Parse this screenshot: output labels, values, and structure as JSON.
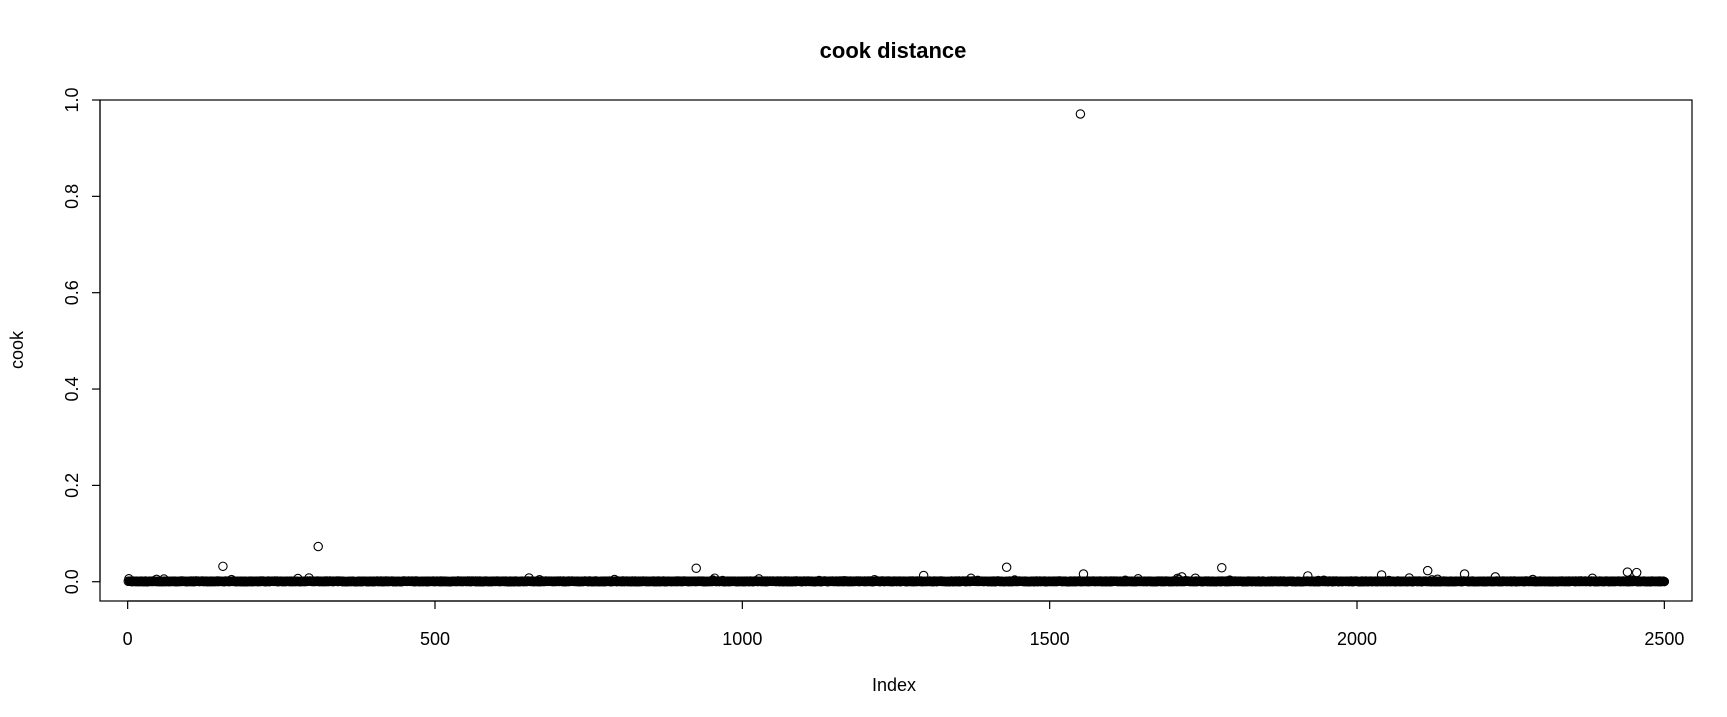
{
  "chart_data": {
    "type": "scatter",
    "title": "cook distance",
    "xlabel": "Index",
    "ylabel": "cook",
    "xlim": [
      -45,
      2545
    ],
    "ylim": [
      -0.04,
      1.0
    ],
    "x_ticks": [
      0,
      500,
      1000,
      1500,
      2000,
      2500
    ],
    "x_tick_labels": [
      "0",
      "500",
      "1000",
      "1500",
      "2000",
      "2500"
    ],
    "y_ticks": [
      0.0,
      0.2,
      0.4,
      0.6,
      0.8,
      1.0
    ],
    "y_tick_labels": [
      "0.0",
      "0.2",
      "0.4",
      "0.6",
      "0.8",
      "1.0"
    ],
    "grid": false,
    "legend": "none",
    "marker": "open-circle",
    "n_points": 2500,
    "baseline": {
      "description": "most observations with Cook's distance near 0",
      "x_range": [
        1,
        2500
      ],
      "y_approx": 0.0
    },
    "outliers": [
      {
        "x": 155,
        "y": 0.032
      },
      {
        "x": 310,
        "y": 0.073
      },
      {
        "x": 925,
        "y": 0.028
      },
      {
        "x": 1295,
        "y": 0.013
      },
      {
        "x": 1430,
        "y": 0.03
      },
      {
        "x": 1550,
        "y": 0.971
      },
      {
        "x": 1555,
        "y": 0.016
      },
      {
        "x": 1715,
        "y": 0.01
      },
      {
        "x": 1780,
        "y": 0.029
      },
      {
        "x": 1920,
        "y": 0.012
      },
      {
        "x": 2040,
        "y": 0.014
      },
      {
        "x": 2115,
        "y": 0.023
      },
      {
        "x": 2175,
        "y": 0.016
      },
      {
        "x": 2225,
        "y": 0.01
      },
      {
        "x": 2440,
        "y": 0.02
      },
      {
        "x": 2455,
        "y": 0.019
      }
    ]
  }
}
